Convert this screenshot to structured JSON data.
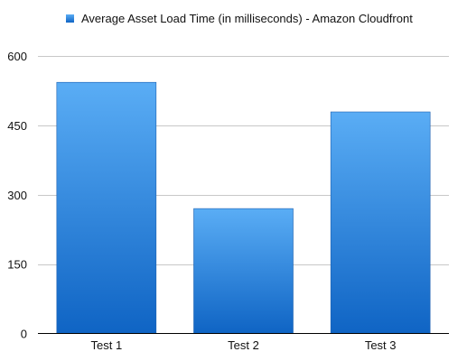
{
  "chart_data": {
    "type": "bar",
    "categories": [
      "Test 1",
      "Test 2",
      "Test 3"
    ],
    "series": [
      {
        "name": "Average Asset Load Time (in milliseconds) - Amazon Cloudfront",
        "values": [
          543,
          270,
          479
        ]
      }
    ],
    "ylim": [
      0,
      600
    ],
    "yticks": [
      0,
      150,
      300,
      450,
      600
    ],
    "ytick_labels": [
      "0",
      "150",
      "300",
      "450",
      "600"
    ],
    "grid": true,
    "legend_position": "top-center",
    "colors": {
      "bar_top": "#5aadf5",
      "bar_bottom": "#0f64c4",
      "grid": "#c8c8c8",
      "axis": "#000000"
    }
  }
}
